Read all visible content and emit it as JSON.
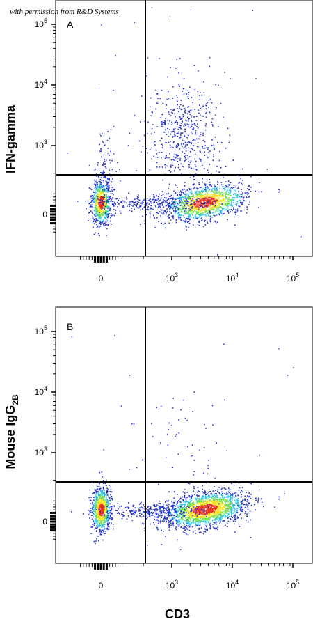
{
  "credit": "with permission from R&D Systems",
  "chart_data": [
    {
      "type": "scatter",
      "panel": "A",
      "xlabel": "CD3",
      "ylabel": "IFN-gamma",
      "x_scale": "biexponential",
      "y_scale": "biexponential",
      "x_ticks": [
        "0",
        "10^3",
        "10^4",
        "10^5"
      ],
      "y_ticks": [
        "0",
        "10^3",
        "10^4",
        "10^5"
      ],
      "quadrant_gate": {
        "x": 350,
        "y": 250
      },
      "populations": [
        {
          "name": "CD3- IFN-gamma-",
          "x_center": 0,
          "y_center": 0,
          "relative_density": 0.25
        },
        {
          "name": "CD3+ IFN-gamma-",
          "x_center": 3500,
          "y_center": 0,
          "relative_density": 0.5
        },
        {
          "name": "CD3+ IFN-gamma+",
          "x_center": 1500,
          "y_center": 1500,
          "relative_density": 0.2
        },
        {
          "name": "CD3- IFN-gamma+",
          "x_center": 50,
          "y_center": 600,
          "relative_density": 0.05
        }
      ]
    },
    {
      "type": "scatter",
      "panel": "B",
      "xlabel": "CD3",
      "ylabel": "Mouse IgG2B",
      "x_scale": "biexponential",
      "y_scale": "biexponential",
      "x_ticks": [
        "0",
        "10^3",
        "10^4",
        "10^5"
      ],
      "y_ticks": [
        "0",
        "10^3",
        "10^4",
        "10^5"
      ],
      "quadrant_gate": {
        "x": 350,
        "y": 250
      },
      "populations": [
        {
          "name": "CD3- isotype-",
          "x_center": 0,
          "y_center": 0,
          "relative_density": 0.3
        },
        {
          "name": "CD3+ isotype-",
          "x_center": 3500,
          "y_center": 0,
          "relative_density": 0.68
        },
        {
          "name": "isotype+ (sparse)",
          "x_center": 1500,
          "y_center": 1500,
          "relative_density": 0.02
        }
      ]
    }
  ],
  "labels": {
    "panel_a_letter": "A",
    "panel_b_letter": "B",
    "panel_a_ylabel": "IFN-gamma",
    "panel_b_ylabel_main": "Mouse IgG",
    "panel_b_ylabel_sub": "2B",
    "xlabel": "CD3",
    "tick_zero": "0",
    "tick_base": "10",
    "tick_exp3": "3",
    "tick_exp4": "4",
    "tick_exp5": "5"
  },
  "colors": {
    "axis": "#000000",
    "density_low": "#1f2fd0",
    "density_mid": "#27c3e6",
    "density_midhigh": "#6ee04a",
    "density_high": "#f6e21c",
    "density_peak": "#e8311a"
  }
}
